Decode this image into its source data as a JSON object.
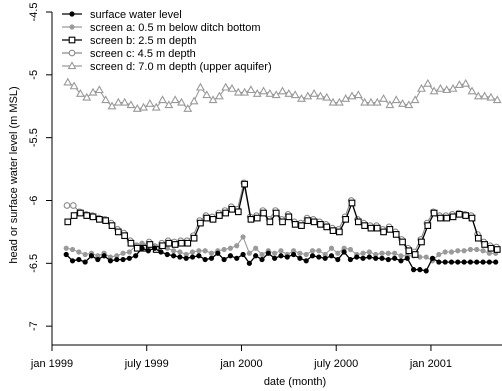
{
  "chart_data": {
    "type": "line",
    "xlabel": "date (month)",
    "ylabel": "head or surface water level (m MSL)",
    "x_ticks": [
      "jan 1999",
      "july 1999",
      "jan 2000",
      "july 2000",
      "jan 2001"
    ],
    "x_tick_values": [
      0,
      6,
      12,
      18,
      24
    ],
    "xlim": [
      0,
      28.5
    ],
    "y_ticks": [
      "-4.5",
      "-5",
      "-5.5",
      "-6",
      "-6.5",
      "-7"
    ],
    "y_tick_values": [
      -4.5,
      -5,
      -5.5,
      -6,
      -6.5,
      -7
    ],
    "ylim": [
      -7.15,
      -4.5
    ],
    "legend_position": "top-left",
    "series": [
      {
        "name": "surface water level",
        "marker": "filled-circle",
        "color": "#000000",
        "x": [
          0.9,
          1.3,
          1.7,
          2.1,
          2.5,
          2.9,
          3.3,
          3.7,
          4.1,
          4.5,
          4.9,
          5.3,
          5.7,
          6.1,
          6.5,
          6.9,
          7.3,
          7.7,
          8.1,
          8.5,
          8.9,
          9.3,
          9.7,
          10.1,
          10.5,
          10.9,
          11.3,
          11.7,
          12.1,
          12.5,
          12.9,
          13.3,
          13.7,
          14.1,
          14.5,
          14.9,
          15.3,
          15.7,
          16.1,
          16.5,
          16.9,
          17.3,
          17.7,
          18.1,
          18.5,
          18.9,
          19.3,
          19.7,
          20.1,
          20.5,
          20.9,
          21.3,
          21.7,
          22.1,
          22.5,
          22.9,
          23.3,
          23.7,
          24.1,
          24.5,
          24.9,
          25.3,
          25.7,
          26.1,
          26.5,
          26.9,
          27.3,
          27.7,
          28.1
        ],
        "values": [
          -6.43,
          -6.48,
          -6.47,
          -6.49,
          -6.44,
          -6.47,
          -6.44,
          -6.48,
          -6.47,
          -6.47,
          -6.46,
          -6.44,
          -6.38,
          -6.4,
          -6.38,
          -6.41,
          -6.43,
          -6.44,
          -6.45,
          -6.46,
          -6.45,
          -6.44,
          -6.47,
          -6.46,
          -6.42,
          -6.47,
          -6.44,
          -6.46,
          -6.43,
          -6.5,
          -6.44,
          -6.47,
          -6.42,
          -6.46,
          -6.44,
          -6.45,
          -6.43,
          -6.46,
          -6.48,
          -6.44,
          -6.45,
          -6.46,
          -6.44,
          -6.47,
          -6.41,
          -6.47,
          -6.45,
          -6.46,
          -6.45,
          -6.46,
          -6.46,
          -6.47,
          -6.46,
          -6.48,
          -6.46,
          -6.55,
          -6.55,
          -6.56,
          -6.46,
          -6.49,
          -6.49,
          -6.49,
          -6.49,
          -6.49,
          -6.49,
          -6.49,
          -6.49,
          -6.49,
          -6.49
        ]
      },
      {
        "name": "screen a: 0.5 m below ditch bottom",
        "marker": "filled-circle",
        "color": "#9a9a9a",
        "x": [
          0.9,
          1.3,
          1.7,
          2.1,
          2.5,
          2.9,
          3.3,
          3.7,
          4.1,
          4.5,
          4.9,
          5.3,
          5.7,
          6.1,
          6.5,
          6.9,
          7.3,
          7.7,
          8.1,
          8.5,
          8.9,
          9.3,
          9.7,
          10.1,
          10.5,
          10.9,
          11.3,
          11.7,
          12.1,
          12.5,
          12.9,
          13.3,
          13.7,
          14.1,
          14.5,
          14.9,
          15.3,
          15.7,
          16.1,
          16.5,
          16.9,
          17.3,
          17.7,
          18.1,
          18.5,
          18.9,
          19.3,
          19.7,
          20.1,
          20.5,
          20.9,
          21.3,
          21.7,
          22.1,
          22.5,
          22.9,
          23.3,
          23.7,
          24.1,
          24.5,
          24.9,
          25.3,
          25.7,
          26.1,
          26.5,
          26.9,
          27.3,
          27.7,
          28.1
        ],
        "values": [
          -6.38,
          -6.39,
          -6.41,
          -6.43,
          -6.42,
          -6.44,
          -6.42,
          -6.45,
          -6.44,
          -6.42,
          -6.41,
          -6.36,
          -6.34,
          -6.38,
          -6.36,
          -6.36,
          -6.38,
          -6.4,
          -6.41,
          -6.43,
          -6.41,
          -6.4,
          -6.4,
          -6.42,
          -6.4,
          -6.39,
          -6.38,
          -6.36,
          -6.29,
          -6.42,
          -6.38,
          -6.43,
          -6.4,
          -6.42,
          -6.4,
          -6.43,
          -6.4,
          -6.42,
          -6.43,
          -6.4,
          -6.4,
          -6.43,
          -6.38,
          -6.42,
          -6.38,
          -6.39,
          -6.43,
          -6.42,
          -6.41,
          -6.43,
          -6.42,
          -6.42,
          -6.42,
          -6.44,
          -6.44,
          -6.44,
          -6.45,
          -6.45,
          -6.48,
          -6.43,
          -6.41,
          -6.41,
          -6.4,
          -6.4,
          -6.39,
          -6.39,
          -6.4,
          -6.42,
          -6.42
        ]
      },
      {
        "name": "screen b: 2.5 m depth",
        "marker": "open-square",
        "color": "#000000",
        "x": [
          1,
          1.4,
          1.8,
          2.2,
          2.6,
          3,
          3.4,
          3.8,
          4.2,
          4.6,
          5,
          5.4,
          5.8,
          6.2,
          6.6,
          7,
          7.4,
          7.8,
          8.2,
          8.6,
          9,
          9.4,
          9.8,
          10.2,
          10.6,
          11,
          11.4,
          11.8,
          12.2,
          12.6,
          13,
          13.4,
          13.8,
          14.2,
          14.6,
          15,
          15.4,
          15.8,
          16.2,
          16.6,
          17,
          17.4,
          17.8,
          18.2,
          18.6,
          19,
          19.4,
          19.8,
          20.2,
          20.6,
          21,
          21.4,
          21.8,
          22.2,
          22.6,
          23,
          23.4,
          23.8,
          24.2,
          24.6,
          25,
          25.4,
          25.8,
          26.2,
          26.6,
          27,
          27.4,
          27.8,
          28.2
        ],
        "values": [
          -6.17,
          -6.12,
          -6.1,
          -6.12,
          -6.13,
          -6.15,
          -6.16,
          -6.2,
          -6.25,
          -6.28,
          -6.34,
          -6.38,
          -6.38,
          -6.35,
          -6.39,
          -6.36,
          -6.34,
          -6.35,
          -6.34,
          -6.34,
          -6.3,
          -6.18,
          -6.14,
          -6.15,
          -6.12,
          -6.1,
          -6.07,
          -6.09,
          -5.87,
          -6.15,
          -6.14,
          -6.1,
          -6.17,
          -6.1,
          -6.17,
          -6.13,
          -6.19,
          -6.2,
          -6.16,
          -6.17,
          -6.19,
          -6.21,
          -6.24,
          -6.25,
          -6.15,
          -6.02,
          -6.17,
          -6.2,
          -6.22,
          -6.22,
          -6.25,
          -6.23,
          -6.27,
          -6.33,
          -6.4,
          -6.43,
          -6.33,
          -6.2,
          -6.1,
          -6.14,
          -6.14,
          -6.13,
          -6.11,
          -6.12,
          -6.14,
          -6.3,
          -6.35,
          -6.38,
          -6.39
        ]
      },
      {
        "name": "screen c: 4.5 m depth",
        "marker": "filled-circle-gray",
        "color": "#8a8a8a",
        "x": [
          0.95,
          1.35,
          1.75,
          2.15,
          2.55,
          2.95,
          3.35,
          3.75,
          4.15,
          4.55,
          4.95,
          5.35,
          5.75,
          6.15,
          6.55,
          6.95,
          7.35,
          7.75,
          8.15,
          8.55,
          8.95,
          9.35,
          9.75,
          10.15,
          10.55,
          10.95,
          11.35,
          11.75,
          12.15,
          12.55,
          12.95,
          13.35,
          13.75,
          14.15,
          14.55,
          14.95,
          15.35,
          15.75,
          16.15,
          16.55,
          16.95,
          17.35,
          17.75,
          18.15,
          18.55,
          18.95,
          19.35,
          19.75,
          20.15,
          20.55,
          20.95,
          21.35,
          21.75,
          22.15,
          22.55,
          22.95,
          23.35,
          23.75,
          24.15,
          24.55,
          24.95,
          25.35,
          25.75,
          26.15,
          26.55,
          26.95,
          27.35,
          27.75,
          28.15
        ],
        "values": [
          -6.04,
          -6.04,
          -6.09,
          -6.11,
          -6.12,
          -6.14,
          -6.15,
          -6.18,
          -6.23,
          -6.26,
          -6.32,
          -6.36,
          -6.36,
          -6.33,
          -6.37,
          -6.34,
          -6.32,
          -6.33,
          -6.32,
          -6.32,
          -6.28,
          -6.16,
          -6.12,
          -6.13,
          -6.1,
          -6.08,
          -6.05,
          -6.07,
          -5.86,
          -6.13,
          -6.12,
          -6.08,
          -6.15,
          -6.08,
          -6.15,
          -6.11,
          -6.17,
          -6.18,
          -6.14,
          -6.15,
          -6.17,
          -6.19,
          -6.22,
          -6.23,
          -6.13,
          -6.0,
          -6.15,
          -6.18,
          -6.2,
          -6.2,
          -6.23,
          -6.21,
          -6.25,
          -6.31,
          -6.38,
          -6.41,
          -6.31,
          -6.18,
          -6.09,
          -6.12,
          -6.12,
          -6.11,
          -6.1,
          -6.11,
          -6.12,
          -6.27,
          -6.33,
          -6.36,
          -6.37
        ]
      },
      {
        "name": "screen d: 7.0 m depth (upper aquifer)",
        "marker": "open-triangle",
        "color": "#9a9a9a",
        "x": [
          1,
          1.4,
          1.8,
          2.2,
          2.6,
          3,
          3.4,
          3.8,
          4.2,
          4.6,
          5,
          5.4,
          5.8,
          6.2,
          6.6,
          7,
          7.4,
          7.8,
          8.2,
          8.6,
          9,
          9.4,
          9.8,
          10.2,
          10.6,
          11,
          11.4,
          11.8,
          12.2,
          12.6,
          13,
          13.4,
          13.8,
          14.2,
          14.6,
          15,
          15.4,
          15.8,
          16.2,
          16.6,
          17,
          17.4,
          17.8,
          18.2,
          18.6,
          19,
          19.4,
          19.8,
          20.2,
          20.6,
          21,
          21.4,
          21.8,
          22.2,
          22.6,
          23,
          23.4,
          23.8,
          24.2,
          24.6,
          25,
          25.4,
          25.8,
          26.2,
          26.6,
          27,
          27.4,
          27.8,
          28.2
        ],
        "values": [
          -5.06,
          -5.09,
          -5.15,
          -5.18,
          -5.14,
          -5.12,
          -5.2,
          -5.25,
          -5.22,
          -5.22,
          -5.24,
          -5.27,
          -5.26,
          -5.23,
          -5.26,
          -5.2,
          -5.24,
          -5.2,
          -5.22,
          -5.27,
          -5.21,
          -5.1,
          -5.16,
          -5.2,
          -5.17,
          -5.1,
          -5.11,
          -5.14,
          -5.14,
          -5.12,
          -5.15,
          -5.13,
          -5.15,
          -5.16,
          -5.13,
          -5.15,
          -5.16,
          -5.19,
          -5.17,
          -5.15,
          -5.17,
          -5.18,
          -5.22,
          -5.22,
          -5.19,
          -5.17,
          -5.16,
          -5.22,
          -5.22,
          -5.22,
          -5.19,
          -5.24,
          -5.2,
          -5.23,
          -5.24,
          -5.2,
          -5.11,
          -5.07,
          -5.13,
          -5.11,
          -5.12,
          -5.11,
          -5.08,
          -5.07,
          -5.13,
          -5.17,
          -5.17,
          -5.18,
          -5.2
        ]
      }
    ]
  }
}
